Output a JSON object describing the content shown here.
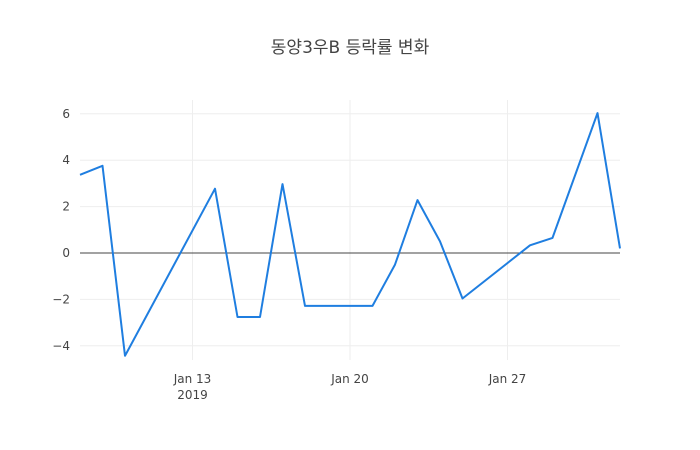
{
  "chart_data": {
    "type": "line",
    "title": "동양3우B 등락률 변화",
    "xlabel": "",
    "ylabel": "",
    "x": [
      "2019-01-08",
      "2019-01-09",
      "2019-01-10",
      "2019-01-14",
      "2019-01-15",
      "2019-01-16",
      "2019-01-17",
      "2019-01-18",
      "2019-01-21",
      "2019-01-22",
      "2019-01-23",
      "2019-01-24",
      "2019-01-25",
      "2019-01-28",
      "2019-01-29",
      "2019-01-31",
      "2019-02-01"
    ],
    "series": [
      {
        "name": "등락률",
        "color": "#1f7ee0",
        "values": [
          3.37,
          3.76,
          -4.43,
          2.77,
          -2.76,
          -2.76,
          2.97,
          -2.28,
          -2.28,
          -0.5,
          2.28,
          0.5,
          -1.96,
          0.33,
          0.65,
          6.03,
          0.2
        ]
      }
    ],
    "x_ticks": [
      {
        "label": "Jan 13",
        "sublabel": "2019",
        "date": "2019-01-13"
      },
      {
        "label": "Jan 20",
        "sublabel": "",
        "date": "2019-01-20"
      },
      {
        "label": "Jan 27",
        "sublabel": "",
        "date": "2019-01-27"
      }
    ],
    "y_ticks": [
      6,
      4,
      2,
      0,
      -2,
      -4
    ],
    "y_tick_labels": [
      "6",
      "4",
      "2",
      "0",
      "−2",
      "−4"
    ],
    "ylim": [
      -4.6,
      6.6
    ],
    "grid": true,
    "legend": false
  }
}
